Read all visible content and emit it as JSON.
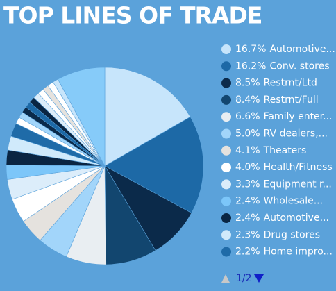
{
  "chart_data": {
    "type": "pie",
    "title": "TOP LINES OF TRADE",
    "categories": [
      "Automotive...",
      "Conv. stores",
      "Restrnt/Ltd",
      "Restrnt/Full",
      "Family enter...",
      "RV dealers,...",
      "Theaters",
      "Health/Fitness",
      "Equipment r...",
      "Wholesale...",
      "Automotive...",
      "Drug stores",
      "Home impro...",
      null,
      null,
      null,
      null,
      null,
      null,
      null,
      null,
      null,
      null,
      null
    ],
    "values": [
      16.7,
      16.2,
      8.5,
      8.4,
      6.6,
      5.0,
      4.1,
      4.0,
      3.3,
      2.4,
      2.4,
      2.3,
      2.2,
      1.1,
      1.0,
      1.0,
      1.0,
      1.0,
      1.0,
      1.0,
      1.0,
      1.0,
      0.9,
      7.9
    ],
    "value_labels": [
      "16.7%",
      "16.2%",
      "8.5%",
      "8.4%",
      "6.6%",
      "5.0%",
      "4.1%",
      "4.0%",
      "3.3%",
      "2.4%",
      "2.4%",
      "2.3%",
      "2.2%",
      null,
      null,
      null,
      null,
      null,
      null,
      null,
      null,
      null,
      null,
      null
    ],
    "colors": [
      "#c7e5fb",
      "#1d69a6",
      "#0b2a4a",
      "#12466f",
      "#e9eef2",
      "#a2d5fa",
      "#e5e2de",
      "#ffffff",
      "#dcedfa",
      "#7cc6f9",
      "#0a2542",
      "#d0eafb",
      "#1f6ba8",
      "#ffffff",
      "#a2d5fa",
      "#0b2a4a",
      "#1d69a6",
      "#0a2542",
      "#dcedfa",
      "#ffffff",
      "#e5e2de",
      "#ffffff",
      "#c7e5fb",
      "#86cbf9"
    ],
    "legend_page": "1/2"
  }
}
